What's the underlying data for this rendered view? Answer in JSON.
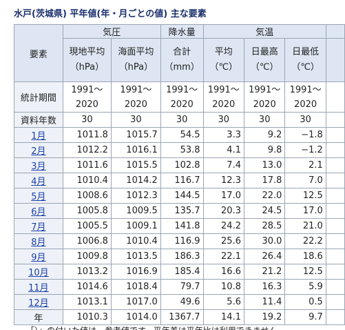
{
  "title": "水戸(茨城県) 平年値(年・月ごとの値) 主な要素",
  "table": {
    "groups": [
      "気圧",
      "降水量",
      "気温"
    ],
    "element_header": "要素",
    "columns": [
      [
        "現地平均",
        "（hPa）"
      ],
      [
        "海面平均",
        "（hPa）"
      ],
      [
        "合計",
        "（mm）"
      ],
      [
        "平均",
        "（℃）"
      ],
      [
        "日最高",
        "（℃）"
      ],
      [
        "日最低",
        "（℃）"
      ]
    ],
    "period": {
      "label": "統計期間",
      "values": [
        "1991～2020",
        "1991～2020",
        "1991～2020",
        "1991～2020",
        "1991～2020",
        "1991～2020"
      ]
    },
    "years": {
      "label": "資料年数",
      "values": [
        "30",
        "30",
        "30",
        "30",
        "30",
        "30"
      ]
    },
    "rows": [
      [
        "1月",
        "1011.8",
        "1015.7",
        "54.5",
        "3.3",
        "9.2",
        "−1.8"
      ],
      [
        "2月",
        "1012.2",
        "1016.1",
        "53.8",
        "4.1",
        "9.8",
        "−1.2"
      ],
      [
        "3月",
        "1011.6",
        "1015.5",
        "102.8",
        "7.4",
        "13.0",
        "2.1"
      ],
      [
        "4月",
        "1010.4",
        "1014.2",
        "116.7",
        "12.3",
        "17.8",
        "7.0"
      ],
      [
        "5月",
        "1008.6",
        "1012.3",
        "144.5",
        "17.0",
        "22.0",
        "12.5"
      ],
      [
        "6月",
        "1005.8",
        "1009.5",
        "135.7",
        "20.3",
        "24.5",
        "17.0"
      ],
      [
        "7月",
        "1005.5",
        "1009.1",
        "141.8",
        "24.2",
        "28.5",
        "21.0"
      ],
      [
        "8月",
        "1006.8",
        "1010.4",
        "116.9",
        "25.6",
        "30.0",
        "22.2"
      ],
      [
        "9月",
        "1009.8",
        "1013.5",
        "186.3",
        "22.1",
        "26.4",
        "18.6"
      ],
      [
        "10月",
        "1013.2",
        "1016.9",
        "185.4",
        "16.6",
        "21.2",
        "12.5"
      ],
      [
        "11月",
        "1014.6",
        "1018.4",
        "79.7",
        "10.8",
        "16.3",
        "5.9"
      ],
      [
        "12月",
        "1013.1",
        "1017.0",
        "49.6",
        "5.6",
        "11.4",
        "0.5"
      ],
      [
        "年",
        "1010.3",
        "1014.0",
        "1367.7",
        "14.1",
        "19.2",
        "9.7"
      ]
    ]
  },
  "note": "「）」の付いた値は、参考値です。平年差は平年比は利用できません"
}
